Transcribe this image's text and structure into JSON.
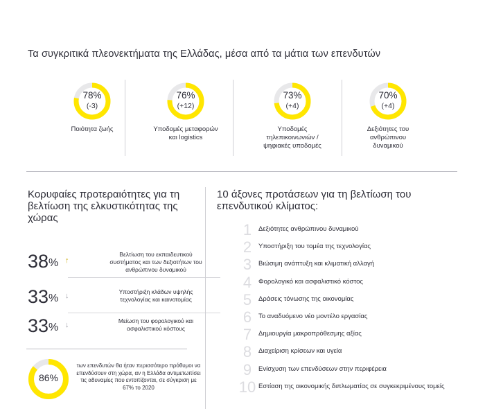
{
  "title": "Τα συγκριτικά πλεονεκτήματα της Ελλάδας, μέσα από τα μάτια των επενδυτών",
  "accent_color": "#ffe600",
  "track_color": "#e8e8ea",
  "advantages": [
    {
      "value": "78%",
      "change": "(-3)",
      "label": "Ποιότητα ζωής",
      "fraction": 0.78
    },
    {
      "value": "76%",
      "change": "(+12)",
      "label": "Υποδομές μεταφορών και logistics",
      "fraction": 0.76
    },
    {
      "value": "73%",
      "change": "(+4)",
      "label": "Υποδομές τηλεπικοινωνιών / ψηφιακές υποδομές",
      "fraction": 0.73
    },
    {
      "value": "70%",
      "change": "(+4)",
      "label": "Δεξιότητες του ανθρώπινου δυναμικού",
      "fraction": 0.7
    }
  ],
  "priorities": {
    "heading": "Κορυφαίες προτεραιότητες για τη βελτίωση της ελκυστικότητας της χώρας",
    "items": [
      {
        "value": "38",
        "unit": "%",
        "trend": "up",
        "trend_icon": "↑",
        "text": "Βελτίωση του εκπαιδευτικού συστήματος και των δεξιοτήτων του ανθρώπινου δυναμικού"
      },
      {
        "value": "33",
        "unit": "%",
        "trend": "down",
        "trend_icon": "↓",
        "text": "Υποστήριξη κλάδων υψηλής τεχνολογίας και καινοτομίας"
      },
      {
        "value": "33",
        "unit": "%",
        "trend": "down",
        "trend_icon": "↓",
        "text": "Μείωση του φορολογικού και ασφαλιστικού κόστους"
      }
    ],
    "bottom": {
      "value": "86%",
      "fraction": 0.86,
      "text": "των επενδυτών θα ήταν περισσότερο πρόθυμοι να επενδύσουν στη χώρα, αν η Ελλάδα αντιμετωπίσει τις αδυναμίες που εντοπίζονται, σε σύγκριση με 67% το 2020"
    }
  },
  "axes": {
    "heading": "10 άξονες προτάσεων για τη βελτίωση του επενδυτικού κλίματος:",
    "items": [
      {
        "num": "1",
        "text": "Δεξιότητες ανθρώπινου δυναμικού"
      },
      {
        "num": "2",
        "text": "Υποστήριξη του τομέα της τεχνολογίας"
      },
      {
        "num": "3",
        "text": "Βιώσιμη ανάπτυξη και κλιματική αλλαγή"
      },
      {
        "num": "4",
        "text": "Φορολογικό και ασφαλιστικό κόστος"
      },
      {
        "num": "5",
        "text": "Δράσεις τόνωσης της οικονομίας"
      },
      {
        "num": "6",
        "text": "Το αναδυόμενο νέο μοντέλο εργασίας"
      },
      {
        "num": "7",
        "text": "Δημιουργία μακροπρόθεσμης αξίας"
      },
      {
        "num": "8",
        "text": "Διαχείριση κρίσεων και υγεία"
      },
      {
        "num": "9",
        "text": "Ενίσχυση των επενδύσεων στην περιφέρεια"
      },
      {
        "num": "10",
        "text": "Εστίαση της οικονομικής διπλωματίας σε συγκεκριμένους τομείς"
      }
    ]
  }
}
